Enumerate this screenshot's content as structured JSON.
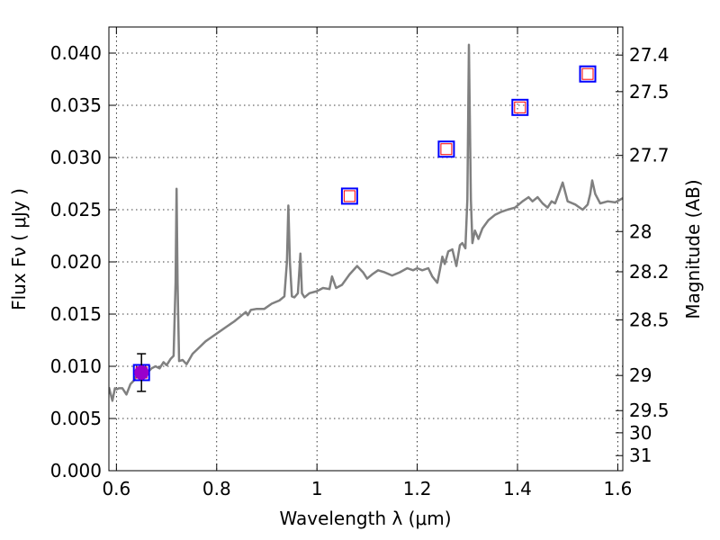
{
  "chart_data": {
    "type": "line",
    "xlabel": "Wavelength  λ (μm)",
    "ylabel": "Flux  Fν  ( μJy )",
    "y2label": "Magnitude (AB)",
    "xlim": [
      0.585,
      1.61
    ],
    "ylim": [
      0.0,
      0.0425
    ],
    "grid": true,
    "x_ticks": [
      "0.6",
      "0.8",
      "1",
      "1.2",
      "1.4",
      "1.6"
    ],
    "x_tick_values": [
      0.6,
      0.8,
      1.0,
      1.2,
      1.4,
      1.6
    ],
    "y_ticks": [
      "0.000",
      "0.005",
      "0.010",
      "0.015",
      "0.020",
      "0.025",
      "0.030",
      "0.035",
      "0.040"
    ],
    "y_tick_values": [
      0.0,
      0.005,
      0.01,
      0.015,
      0.02,
      0.025,
      0.03,
      0.035,
      0.04
    ],
    "y2_ticks": [
      "27.4",
      "27.5",
      "27.7",
      "28",
      "28.2",
      "28.5",
      "29",
      "29.5",
      "30",
      "31"
    ],
    "y2_tick_values": [
      27.4,
      27.5,
      27.7,
      28.0,
      28.2,
      28.5,
      29.0,
      29.5,
      30.0,
      31.0
    ],
    "colors": {
      "spectrum": "#808080",
      "square_outer": "#0000ff",
      "square_inner": "#ff0000",
      "circle_fill": "#9900cc",
      "errorbar": "#000000"
    },
    "series": [
      {
        "style": "spectrum",
        "x": [
          0.585,
          0.592,
          0.597,
          0.601,
          0.605,
          0.612,
          0.62,
          0.628,
          0.636,
          0.64,
          0.648,
          0.655,
          0.662,
          0.67,
          0.678,
          0.686,
          0.694,
          0.7,
          0.708,
          0.714,
          0.718,
          0.72,
          0.722,
          0.725,
          0.732,
          0.74,
          0.752,
          0.765,
          0.778,
          0.79,
          0.805,
          0.82,
          0.835,
          0.848,
          0.858,
          0.862,
          0.868,
          0.88,
          0.895,
          0.91,
          0.925,
          0.935,
          0.94,
          0.943,
          0.946,
          0.95,
          0.955,
          0.962,
          0.967,
          0.97,
          0.975,
          0.985,
          1.0,
          1.012,
          1.025,
          1.03,
          1.038,
          1.05,
          1.065,
          1.08,
          1.092,
          1.1,
          1.11,
          1.122,
          1.135,
          1.15,
          1.165,
          1.18,
          1.192,
          1.2,
          1.21,
          1.222,
          1.23,
          1.24,
          1.245,
          1.25,
          1.255,
          1.262,
          1.27,
          1.278,
          1.285,
          1.29,
          1.296,
          1.3,
          1.303,
          1.307,
          1.31,
          1.315,
          1.322,
          1.33,
          1.342,
          1.355,
          1.368,
          1.38,
          1.395,
          1.41,
          1.422,
          1.43,
          1.44,
          1.45,
          1.46,
          1.468,
          1.475,
          1.482,
          1.49,
          1.5,
          1.515,
          1.53,
          1.54,
          1.545,
          1.549,
          1.555,
          1.565,
          1.58,
          1.595,
          1.61
        ],
        "values": [
          0.008,
          0.0067,
          0.0079,
          0.0078,
          0.0079,
          0.0079,
          0.0073,
          0.0083,
          0.0087,
          0.0092,
          0.0094,
          0.0096,
          0.0094,
          0.0098,
          0.01,
          0.0098,
          0.0104,
          0.0101,
          0.0107,
          0.011,
          0.018,
          0.027,
          0.018,
          0.0105,
          0.0106,
          0.0102,
          0.0112,
          0.0118,
          0.0124,
          0.0128,
          0.0133,
          0.0138,
          0.0143,
          0.0148,
          0.0152,
          0.0149,
          0.0154,
          0.0155,
          0.0155,
          0.016,
          0.0163,
          0.0167,
          0.02,
          0.0254,
          0.02,
          0.0167,
          0.0166,
          0.017,
          0.0208,
          0.017,
          0.0166,
          0.017,
          0.0172,
          0.0175,
          0.0174,
          0.0186,
          0.0175,
          0.0178,
          0.0188,
          0.0196,
          0.019,
          0.0184,
          0.0188,
          0.0192,
          0.019,
          0.0187,
          0.019,
          0.0194,
          0.0192,
          0.0194,
          0.0192,
          0.0194,
          0.0186,
          0.018,
          0.0192,
          0.0205,
          0.0198,
          0.021,
          0.0212,
          0.0196,
          0.0216,
          0.0218,
          0.0213,
          0.026,
          0.0408,
          0.026,
          0.0218,
          0.023,
          0.0222,
          0.0232,
          0.024,
          0.0245,
          0.0248,
          0.025,
          0.0252,
          0.0258,
          0.0262,
          0.0258,
          0.0262,
          0.0256,
          0.0252,
          0.0258,
          0.0256,
          0.0265,
          0.0276,
          0.0258,
          0.0255,
          0.025,
          0.0255,
          0.0265,
          0.0278,
          0.0265,
          0.0256,
          0.0258,
          0.0257,
          0.0261
        ]
      },
      {
        "style": "squares",
        "x": [
          0.65,
          1.065,
          1.258,
          1.405,
          1.54
        ],
        "values": [
          0.0094,
          0.0263,
          0.0308,
          0.0348,
          0.038
        ]
      },
      {
        "style": "circle-errorbar",
        "x": [
          0.65
        ],
        "values": [
          0.0094
        ],
        "error": [
          0.0018
        ]
      }
    ]
  }
}
